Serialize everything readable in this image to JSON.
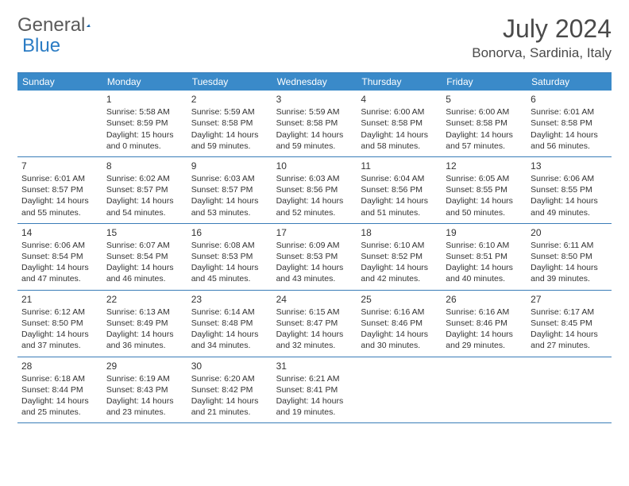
{
  "logo": {
    "general": "General",
    "blue": "Blue"
  },
  "title": "July 2024",
  "location": "Bonorva, Sardinia, Italy",
  "weekdays": [
    "Sunday",
    "Monday",
    "Tuesday",
    "Wednesday",
    "Thursday",
    "Friday",
    "Saturday"
  ],
  "colors": {
    "header_bar": "#3a8ac9",
    "border": "#3a7db8",
    "logo_gray": "#5a5a5a",
    "logo_blue": "#2b7cc4",
    "text": "#333333",
    "bg": "#ffffff"
  },
  "start_offset": 1,
  "days": [
    {
      "n": "1",
      "sunrise": "5:58 AM",
      "sunset": "8:59 PM",
      "daylight": "15 hours and 0 minutes."
    },
    {
      "n": "2",
      "sunrise": "5:59 AM",
      "sunset": "8:58 PM",
      "daylight": "14 hours and 59 minutes."
    },
    {
      "n": "3",
      "sunrise": "5:59 AM",
      "sunset": "8:58 PM",
      "daylight": "14 hours and 59 minutes."
    },
    {
      "n": "4",
      "sunrise": "6:00 AM",
      "sunset": "8:58 PM",
      "daylight": "14 hours and 58 minutes."
    },
    {
      "n": "5",
      "sunrise": "6:00 AM",
      "sunset": "8:58 PM",
      "daylight": "14 hours and 57 minutes."
    },
    {
      "n": "6",
      "sunrise": "6:01 AM",
      "sunset": "8:58 PM",
      "daylight": "14 hours and 56 minutes."
    },
    {
      "n": "7",
      "sunrise": "6:01 AM",
      "sunset": "8:57 PM",
      "daylight": "14 hours and 55 minutes."
    },
    {
      "n": "8",
      "sunrise": "6:02 AM",
      "sunset": "8:57 PM",
      "daylight": "14 hours and 54 minutes."
    },
    {
      "n": "9",
      "sunrise": "6:03 AM",
      "sunset": "8:57 PM",
      "daylight": "14 hours and 53 minutes."
    },
    {
      "n": "10",
      "sunrise": "6:03 AM",
      "sunset": "8:56 PM",
      "daylight": "14 hours and 52 minutes."
    },
    {
      "n": "11",
      "sunrise": "6:04 AM",
      "sunset": "8:56 PM",
      "daylight": "14 hours and 51 minutes."
    },
    {
      "n": "12",
      "sunrise": "6:05 AM",
      "sunset": "8:55 PM",
      "daylight": "14 hours and 50 minutes."
    },
    {
      "n": "13",
      "sunrise": "6:06 AM",
      "sunset": "8:55 PM",
      "daylight": "14 hours and 49 minutes."
    },
    {
      "n": "14",
      "sunrise": "6:06 AM",
      "sunset": "8:54 PM",
      "daylight": "14 hours and 47 minutes."
    },
    {
      "n": "15",
      "sunrise": "6:07 AM",
      "sunset": "8:54 PM",
      "daylight": "14 hours and 46 minutes."
    },
    {
      "n": "16",
      "sunrise": "6:08 AM",
      "sunset": "8:53 PM",
      "daylight": "14 hours and 45 minutes."
    },
    {
      "n": "17",
      "sunrise": "6:09 AM",
      "sunset": "8:53 PM",
      "daylight": "14 hours and 43 minutes."
    },
    {
      "n": "18",
      "sunrise": "6:10 AM",
      "sunset": "8:52 PM",
      "daylight": "14 hours and 42 minutes."
    },
    {
      "n": "19",
      "sunrise": "6:10 AM",
      "sunset": "8:51 PM",
      "daylight": "14 hours and 40 minutes."
    },
    {
      "n": "20",
      "sunrise": "6:11 AM",
      "sunset": "8:50 PM",
      "daylight": "14 hours and 39 minutes."
    },
    {
      "n": "21",
      "sunrise": "6:12 AM",
      "sunset": "8:50 PM",
      "daylight": "14 hours and 37 minutes."
    },
    {
      "n": "22",
      "sunrise": "6:13 AM",
      "sunset": "8:49 PM",
      "daylight": "14 hours and 36 minutes."
    },
    {
      "n": "23",
      "sunrise": "6:14 AM",
      "sunset": "8:48 PM",
      "daylight": "14 hours and 34 minutes."
    },
    {
      "n": "24",
      "sunrise": "6:15 AM",
      "sunset": "8:47 PM",
      "daylight": "14 hours and 32 minutes."
    },
    {
      "n": "25",
      "sunrise": "6:16 AM",
      "sunset": "8:46 PM",
      "daylight": "14 hours and 30 minutes."
    },
    {
      "n": "26",
      "sunrise": "6:16 AM",
      "sunset": "8:46 PM",
      "daylight": "14 hours and 29 minutes."
    },
    {
      "n": "27",
      "sunrise": "6:17 AM",
      "sunset": "8:45 PM",
      "daylight": "14 hours and 27 minutes."
    },
    {
      "n": "28",
      "sunrise": "6:18 AM",
      "sunset": "8:44 PM",
      "daylight": "14 hours and 25 minutes."
    },
    {
      "n": "29",
      "sunrise": "6:19 AM",
      "sunset": "8:43 PM",
      "daylight": "14 hours and 23 minutes."
    },
    {
      "n": "30",
      "sunrise": "6:20 AM",
      "sunset": "8:42 PM",
      "daylight": "14 hours and 21 minutes."
    },
    {
      "n": "31",
      "sunrise": "6:21 AM",
      "sunset": "8:41 PM",
      "daylight": "14 hours and 19 minutes."
    }
  ]
}
